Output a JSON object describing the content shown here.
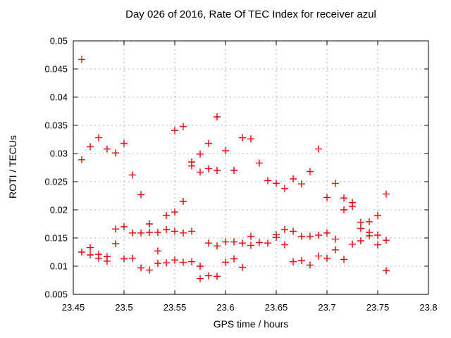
{
  "chart_data": {
    "type": "scatter",
    "title": "Day 026 of 2016, Rate Of TEC Index for receiver azul",
    "xlabel": "GPS time / hours",
    "ylabel": "ROTI / TECUs",
    "xlim": [
      23.45,
      23.8
    ],
    "ylim": [
      0.005,
      0.05
    ],
    "xticks": [
      23.45,
      23.5,
      23.55,
      23.6,
      23.65,
      23.7,
      23.75,
      23.8
    ],
    "xtick_labels": [
      "23.45",
      "23.5",
      "23.55",
      "23.6",
      "23.65",
      "23.7",
      "23.75",
      "23.8"
    ],
    "yticks": [
      0.005,
      0.01,
      0.015,
      0.02,
      0.025,
      0.03,
      0.035,
      0.04,
      0.045,
      0.05
    ],
    "ytick_labels": [
      "0.005",
      "0.01",
      "0.015",
      "0.02",
      "0.025",
      "0.03",
      "0.035",
      "0.04",
      "0.045",
      "0.05"
    ],
    "grid": true,
    "legend_position": "none",
    "marker_shape": "plus",
    "marker_color": "#ee0000",
    "grid_color": "#b0b0b0",
    "border_color": "#000000",
    "background_color": "#ffffff",
    "points": [
      [
        23.4583,
        0.0467
      ],
      [
        23.4583,
        0.0289
      ],
      [
        23.4583,
        0.0125
      ],
      [
        23.4667,
        0.0312
      ],
      [
        23.4667,
        0.0133
      ],
      [
        23.4667,
        0.012
      ],
      [
        23.475,
        0.0328
      ],
      [
        23.475,
        0.0121
      ],
      [
        23.475,
        0.0114
      ],
      [
        23.4833,
        0.0308
      ],
      [
        23.4833,
        0.0117
      ],
      [
        23.4833,
        0.0109
      ],
      [
        23.4917,
        0.0301
      ],
      [
        23.4917,
        0.0166
      ],
      [
        23.4917,
        0.014
      ],
      [
        23.5,
        0.0318
      ],
      [
        23.5,
        0.017
      ],
      [
        23.5,
        0.0113
      ],
      [
        23.5083,
        0.0262
      ],
      [
        23.5083,
        0.0159
      ],
      [
        23.5083,
        0.0114
      ],
      [
        23.5167,
        0.0227
      ],
      [
        23.5167,
        0.0159
      ],
      [
        23.5167,
        0.0097
      ],
      [
        23.525,
        0.0175
      ],
      [
        23.525,
        0.016
      ],
      [
        23.525,
        0.0093
      ],
      [
        23.5333,
        0.016
      ],
      [
        23.5333,
        0.0127
      ],
      [
        23.5333,
        0.0105
      ],
      [
        23.5417,
        0.019
      ],
      [
        23.5417,
        0.0165
      ],
      [
        23.5417,
        0.0106
      ],
      [
        23.55,
        0.0341
      ],
      [
        23.55,
        0.0196
      ],
      [
        23.55,
        0.0162
      ],
      [
        23.55,
        0.0111
      ],
      [
        23.5583,
        0.0348
      ],
      [
        23.5583,
        0.0215
      ],
      [
        23.5583,
        0.0159
      ],
      [
        23.5583,
        0.0107
      ],
      [
        23.5667,
        0.0285
      ],
      [
        23.5667,
        0.0278
      ],
      [
        23.5667,
        0.0162
      ],
      [
        23.5667,
        0.0108
      ],
      [
        23.575,
        0.0299
      ],
      [
        23.575,
        0.0267
      ],
      [
        23.575,
        0.01
      ],
      [
        23.575,
        0.0078
      ],
      [
        23.5833,
        0.0318
      ],
      [
        23.5833,
        0.0273
      ],
      [
        23.5833,
        0.0141
      ],
      [
        23.5833,
        0.0083
      ],
      [
        23.5917,
        0.0365
      ],
      [
        23.5917,
        0.027
      ],
      [
        23.5917,
        0.0136
      ],
      [
        23.5917,
        0.0082
      ],
      [
        23.6,
        0.0305
      ],
      [
        23.6,
        0.0143
      ],
      [
        23.6,
        0.0107
      ],
      [
        23.6083,
        0.027
      ],
      [
        23.6083,
        0.0143
      ],
      [
        23.6083,
        0.0113
      ],
      [
        23.6167,
        0.0328
      ],
      [
        23.6167,
        0.0141
      ],
      [
        23.6167,
        0.0098
      ],
      [
        23.625,
        0.0326
      ],
      [
        23.625,
        0.0153
      ],
      [
        23.625,
        0.0137
      ],
      [
        23.6333,
        0.0283
      ],
      [
        23.6333,
        0.0142
      ],
      [
        23.6417,
        0.0252
      ],
      [
        23.6417,
        0.0141
      ],
      [
        23.65,
        0.0247
      ],
      [
        23.65,
        0.0156
      ],
      [
        23.65,
        0.0151
      ],
      [
        23.6583,
        0.0238
      ],
      [
        23.6583,
        0.0165
      ],
      [
        23.6583,
        0.0138
      ],
      [
        23.6667,
        0.0255
      ],
      [
        23.6667,
        0.0162
      ],
      [
        23.6667,
        0.0108
      ],
      [
        23.675,
        0.0246
      ],
      [
        23.675,
        0.0153
      ],
      [
        23.675,
        0.011
      ],
      [
        23.6833,
        0.0268
      ],
      [
        23.6833,
        0.0153
      ],
      [
        23.6833,
        0.0102
      ],
      [
        23.6917,
        0.0308
      ],
      [
        23.6917,
        0.0155
      ],
      [
        23.6917,
        0.0118
      ],
      [
        23.7,
        0.0222
      ],
      [
        23.7,
        0.0159
      ],
      [
        23.7,
        0.0114
      ],
      [
        23.7083,
        0.0247
      ],
      [
        23.7083,
        0.0148
      ],
      [
        23.7083,
        0.0129
      ],
      [
        23.7167,
        0.0221
      ],
      [
        23.7167,
        0.02
      ],
      [
        23.7167,
        0.0112
      ],
      [
        23.725,
        0.0213
      ],
      [
        23.725,
        0.0206
      ],
      [
        23.725,
        0.0139
      ],
      [
        23.7333,
        0.0178
      ],
      [
        23.7333,
        0.0167
      ],
      [
        23.7333,
        0.0145
      ],
      [
        23.7417,
        0.0179
      ],
      [
        23.7417,
        0.016
      ],
      [
        23.7417,
        0.0154
      ],
      [
        23.75,
        0.019
      ],
      [
        23.75,
        0.0155
      ],
      [
        23.75,
        0.0138
      ],
      [
        23.7583,
        0.0228
      ],
      [
        23.7583,
        0.0146
      ],
      [
        23.7583,
        0.0092
      ]
    ]
  }
}
